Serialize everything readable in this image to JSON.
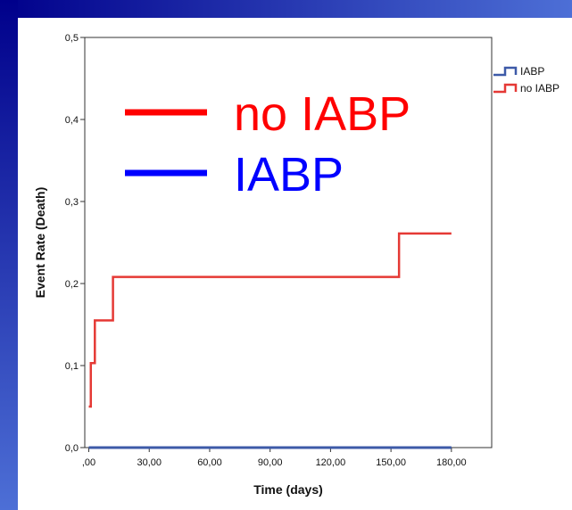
{
  "colors": {
    "frame_dark": "#00008b",
    "frame_light": "#4d6fd6",
    "series_red": "#e53935",
    "series_blue": "#3d5aa8",
    "annotation_red": "#ff0000",
    "annotation_blue": "#0000ff"
  },
  "chart_data": {
    "type": "line",
    "title": "",
    "xlabel": "Time (days)",
    "ylabel": "Event Rate (Death)",
    "xlim": [
      -2,
      200
    ],
    "ylim": [
      0,
      0.5
    ],
    "x_ticks": [
      0,
      30,
      60,
      90,
      120,
      150,
      180
    ],
    "x_tick_labels": [
      ",00",
      "30,00",
      "60,00",
      "90,00",
      "120,00",
      "150,00",
      "180,00"
    ],
    "y_ticks": [
      0,
      0.1,
      0.2,
      0.3,
      0.4,
      0.5
    ],
    "y_tick_labels": [
      "0,0",
      "0,1",
      "0,2",
      "0,3",
      "0,4",
      "0,5"
    ],
    "grid": false,
    "legend_position": "outside-right",
    "step": true,
    "series": [
      {
        "name": "IABP",
        "color": "#3d5aa8",
        "x": [
          0,
          180
        ],
        "y": [
          0,
          0
        ]
      },
      {
        "name": "no IABP",
        "color": "#e53935",
        "x": [
          0,
          1,
          3,
          12,
          154,
          180
        ],
        "y": [
          0.05,
          0.103,
          0.155,
          0.208,
          0.261,
          0.261
        ]
      }
    ],
    "annotations": [
      {
        "text": "no IABP",
        "color": "#ff0000"
      },
      {
        "text": "IABP",
        "color": "#0000ff"
      }
    ]
  }
}
